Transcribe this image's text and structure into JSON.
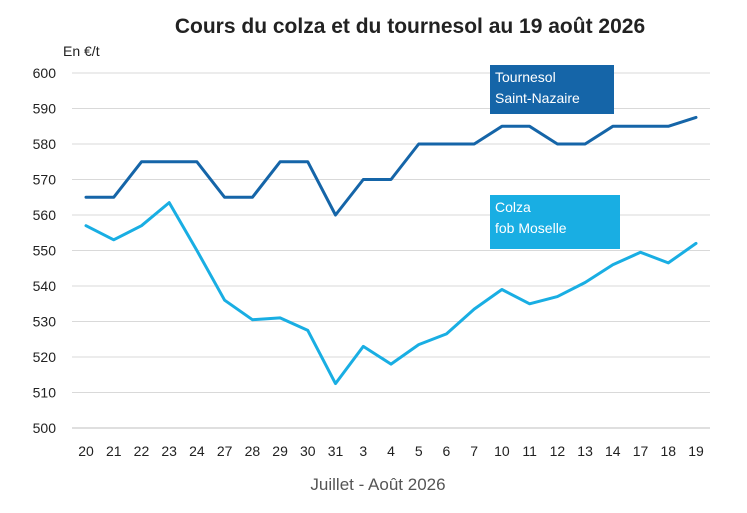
{
  "chart_data": {
    "type": "line",
    "title": "Cours du colza et du tournesol au 19 août 2026",
    "ylabel": "En €/t",
    "xlabel": "Juillet - Août 2026",
    "ylim": [
      500,
      600
    ],
    "yticks": [
      500,
      510,
      520,
      530,
      540,
      550,
      560,
      570,
      580,
      590,
      600
    ],
    "grid": true,
    "categories": [
      "20",
      "21",
      "22",
      "23",
      "24",
      "27",
      "28",
      "29",
      "30",
      "31",
      "3",
      "4",
      "5",
      "6",
      "7",
      "10",
      "11",
      "12",
      "13",
      "14",
      "17",
      "18",
      "19"
    ],
    "series": [
      {
        "name": "Tournesol Saint-Nazaire",
        "label_lines": [
          "Tournesol",
          "Saint-Nazaire"
        ],
        "color": "#1565a8",
        "values": [
          565,
          565,
          575,
          575,
          575,
          565,
          565,
          575,
          575,
          560,
          570,
          570,
          580,
          580,
          580,
          585,
          585,
          580,
          580,
          585,
          585,
          585,
          587.5
        ]
      },
      {
        "name": "Colza fob Moselle",
        "label_lines": [
          "Colza",
          "fob Moselle"
        ],
        "color": "#19aee3",
        "values": [
          557,
          553,
          557,
          563.5,
          550,
          536,
          530.5,
          531,
          527.5,
          512.5,
          523,
          518,
          523.5,
          526.5,
          533.5,
          539,
          535,
          537,
          541,
          546,
          549.5,
          546.5,
          552
        ]
      }
    ]
  }
}
